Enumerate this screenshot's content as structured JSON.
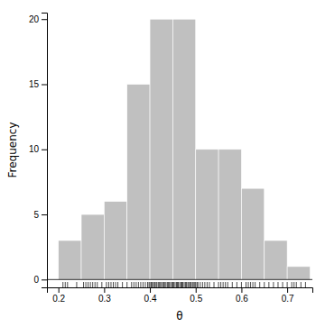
{
  "chart_data": {
    "type": "histogram",
    "xlabel": "θ",
    "ylabel": "Frequency",
    "bins": [
      0.2,
      0.25,
      0.3,
      0.35,
      0.4,
      0.45,
      0.5,
      0.55,
      0.6,
      0.65,
      0.7,
      0.75
    ],
    "values": [
      3,
      5,
      6,
      15,
      20,
      20,
      10,
      10,
      7,
      3,
      1
    ],
    "color": "#c0c0c0",
    "xlim": [
      0.175,
      0.755
    ],
    "ylim": [
      -0.6,
      20.5
    ],
    "xticks": [
      0.2,
      0.3,
      0.4,
      0.5,
      0.6,
      0.7
    ],
    "yticks": [
      0,
      5,
      10,
      15,
      20
    ],
    "rug": [
      0.21,
      0.215,
      0.22,
      0.24,
      0.255,
      0.26,
      0.265,
      0.27,
      0.275,
      0.28,
      0.285,
      0.295,
      0.305,
      0.31,
      0.315,
      0.32,
      0.325,
      0.33,
      0.34,
      0.35,
      0.36,
      0.365,
      0.37,
      0.375,
      0.38,
      0.385,
      0.39,
      0.395,
      0.398,
      0.4,
      0.403,
      0.405,
      0.408,
      0.41,
      0.412,
      0.415,
      0.418,
      0.42,
      0.422,
      0.425,
      0.428,
      0.43,
      0.432,
      0.435,
      0.438,
      0.44,
      0.442,
      0.445,
      0.448,
      0.45,
      0.452,
      0.455,
      0.458,
      0.46,
      0.462,
      0.465,
      0.468,
      0.47,
      0.472,
      0.475,
      0.478,
      0.48,
      0.483,
      0.485,
      0.488,
      0.49,
      0.493,
      0.495,
      0.498,
      0.5,
      0.503,
      0.505,
      0.51,
      0.515,
      0.52,
      0.525,
      0.53,
      0.54,
      0.55,
      0.555,
      0.56,
      0.565,
      0.57,
      0.58,
      0.59,
      0.6,
      0.61,
      0.615,
      0.62,
      0.625,
      0.63,
      0.64,
      0.65,
      0.66,
      0.67,
      0.68,
      0.69,
      0.7,
      0.71,
      0.715,
      0.72,
      0.73,
      0.74
    ]
  }
}
